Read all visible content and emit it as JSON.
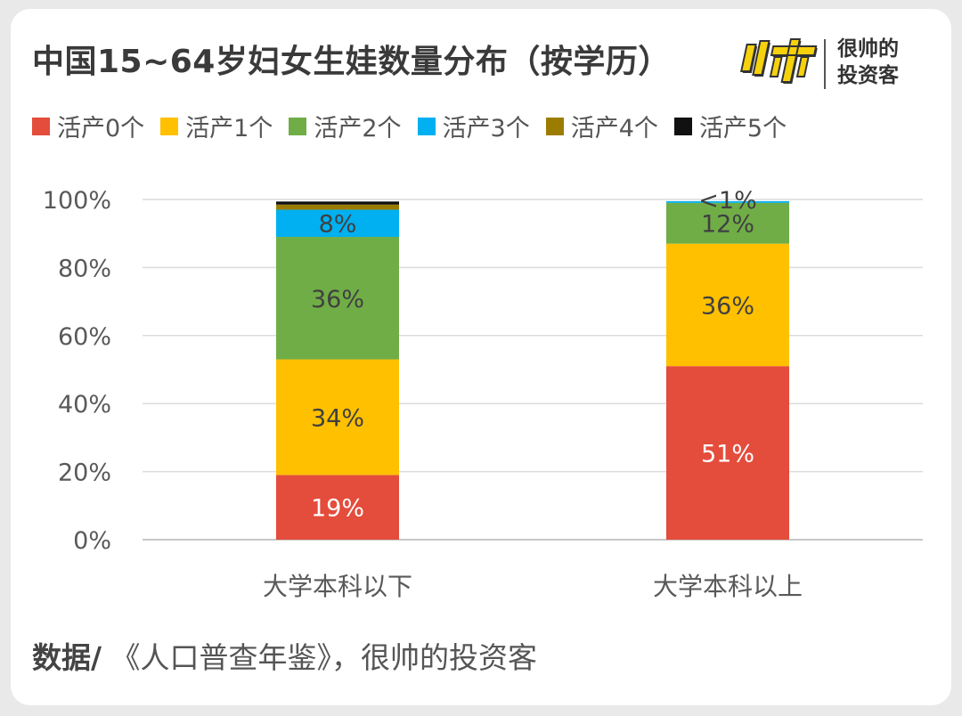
{
  "header": {
    "title": "中国15~64岁妇女生娃数量分布（按学历）",
    "brand_line1": "很帅的",
    "brand_line2": "投资客"
  },
  "chart_data": {
    "type": "bar",
    "stacked": true,
    "categories": [
      "大学本科以下",
      "大学本科以上"
    ],
    "series": [
      {
        "name": "活产0个",
        "color": "#E44C3C",
        "values": [
          19,
          51
        ],
        "labels": [
          "19%",
          "51%"
        ]
      },
      {
        "name": "活产1个",
        "color": "#FFC000",
        "values": [
          34,
          36
        ],
        "labels": [
          "34%",
          "36%"
        ]
      },
      {
        "name": "活产2个",
        "color": "#70AD47",
        "values": [
          36,
          12
        ],
        "labels": [
          "36%",
          "12%"
        ]
      },
      {
        "name": "活产3个",
        "color": "#00B0F0",
        "values": [
          8,
          0.5
        ],
        "labels": [
          "8%",
          "<1%"
        ]
      },
      {
        "name": "活产4个",
        "color": "#9C7C00",
        "values": [
          1.5,
          0
        ],
        "labels": [
          "",
          ""
        ]
      },
      {
        "name": "活产5个",
        "color": "#111111",
        "values": [
          0.9,
          0
        ],
        "labels": [
          "",
          ""
        ]
      }
    ],
    "ylim": [
      0,
      100
    ],
    "yticks": [
      "0%",
      "20%",
      "40%",
      "60%",
      "80%",
      "100%"
    ],
    "grid": true,
    "legend": "top",
    "xlabel": "",
    "ylabel": ""
  },
  "footer": {
    "source_label": "数据/",
    "source_text": " 《人口普查年鉴》，很帅的投资客"
  }
}
